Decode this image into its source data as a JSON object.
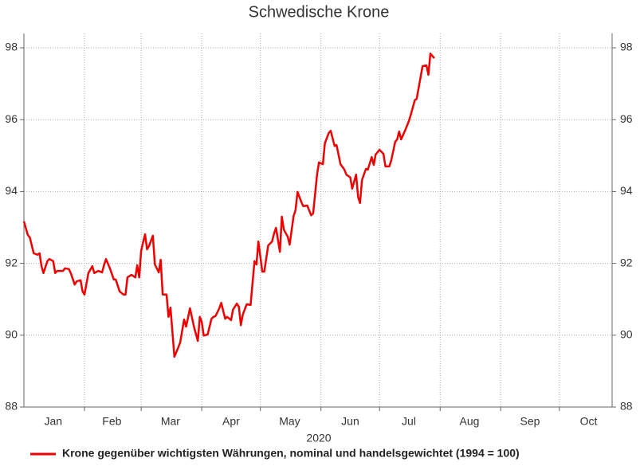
{
  "chart_data": {
    "type": "line",
    "title": "Schwedische Krone",
    "xlabel": "2020",
    "x": [
      0,
      2,
      3,
      5,
      7,
      8,
      9,
      10,
      12,
      13,
      15,
      16,
      17,
      20,
      21,
      23,
      24,
      26,
      27,
      29,
      30,
      31,
      33,
      35,
      36,
      38,
      40,
      41,
      42,
      44,
      46,
      47,
      49,
      51,
      52,
      53,
      55,
      57,
      58,
      59,
      60,
      62,
      63,
      64,
      66,
      67,
      69,
      70,
      71,
      73,
      74,
      75,
      77,
      79,
      80,
      82,
      83,
      85,
      87,
      89,
      90,
      91,
      92,
      94,
      96,
      97,
      98,
      100,
      101,
      103,
      104,
      106,
      107,
      109,
      110,
      111,
      112,
      114,
      116,
      118,
      119,
      120,
      122,
      123,
      125,
      127,
      128,
      129,
      131,
      132,
      133,
      135,
      136,
      138,
      139,
      140,
      142,
      143,
      145,
      147,
      148,
      150,
      151,
      153,
      154,
      156,
      157,
      159,
      160,
      162,
      164,
      165,
      167,
      168,
      170,
      171,
      172,
      173,
      175,
      176,
      178,
      179,
      180,
      182,
      184,
      185,
      187,
      188,
      190,
      191,
      192,
      193,
      195,
      197,
      198,
      200,
      201,
      202,
      204,
      206,
      207,
      208,
      210
    ],
    "series": [
      {
        "name": "Krone gegenüber wichtigsten Währungen, nominal und handelsgewichtet (1994 = 100)",
        "color": "#ee0000",
        "values": [
          93.17,
          92.79,
          92.72,
          92.28,
          92.24,
          92.28,
          91.92,
          91.73,
          92.06,
          92.12,
          92.06,
          91.73,
          91.79,
          91.79,
          91.86,
          91.84,
          91.73,
          91.41,
          91.5,
          91.53,
          91.22,
          91.13,
          91.73,
          91.92,
          91.73,
          91.79,
          91.75,
          91.95,
          92.12,
          91.86,
          91.55,
          91.55,
          91.22,
          91.13,
          91.13,
          91.61,
          91.68,
          91.61,
          91.95,
          91.61,
          92.35,
          92.81,
          92.39,
          92.48,
          92.77,
          91.97,
          91.75,
          92.1,
          91.13,
          91.13,
          90.51,
          90.77,
          89.4,
          89.66,
          89.8,
          90.44,
          90.24,
          90.75,
          90.24,
          89.84,
          90.51,
          90.37,
          89.99,
          90.02,
          90.46,
          90.51,
          90.53,
          90.75,
          90.9,
          90.46,
          90.51,
          90.42,
          90.71,
          90.88,
          90.79,
          90.28,
          90.57,
          90.86,
          90.84,
          92.06,
          91.97,
          92.61,
          91.77,
          91.77,
          92.5,
          92.61,
          92.83,
          92.99,
          92.32,
          93.3,
          92.94,
          92.74,
          92.52,
          93.32,
          93.48,
          93.99,
          93.7,
          93.59,
          93.61,
          93.34,
          93.39,
          94.47,
          94.81,
          94.76,
          95.34,
          95.63,
          95.69,
          95.27,
          95.29,
          94.76,
          94.61,
          94.47,
          94.39,
          94.08,
          94.47,
          93.85,
          93.68,
          94.32,
          94.63,
          94.61,
          94.96,
          94.74,
          95.03,
          95.16,
          95.05,
          94.7,
          94.7,
          94.87,
          95.38,
          95.45,
          95.67,
          95.45,
          95.69,
          95.96,
          96.14,
          96.54,
          96.58,
          96.89,
          97.49,
          97.51,
          97.25,
          97.84,
          97.71
        ]
      }
    ],
    "xlim": [
      0,
      301
    ],
    "xticks": [
      31,
      60,
      91,
      121,
      152,
      182,
      213,
      244,
      274
    ],
    "xlabels": [
      {
        "value": 15,
        "label": "Jan"
      },
      {
        "value": 45,
        "label": "Feb"
      },
      {
        "value": 75,
        "label": "Mar"
      },
      {
        "value": 106,
        "label": "Apr"
      },
      {
        "value": 136,
        "label": "May"
      },
      {
        "value": 167,
        "label": "Jun"
      },
      {
        "value": 197,
        "label": "Jul"
      },
      {
        "value": 228,
        "label": "Aug"
      },
      {
        "value": 259,
        "label": "Sep"
      },
      {
        "value": 289,
        "label": "Oct"
      }
    ],
    "ylim": [
      88,
      98.4
    ],
    "yticks": [
      88,
      90,
      92,
      94,
      96,
      98
    ],
    "grid": true
  }
}
